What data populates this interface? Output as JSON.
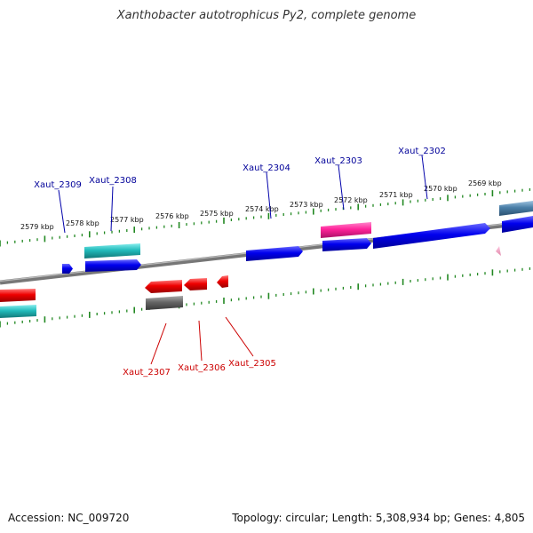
{
  "title": "Xanthobacter autotrophicus Py2, complete genome",
  "footer": {
    "accession": "Accession: NC_009720",
    "summary": "Topology: circular; Length: 5,308,934 bp; Genes: 4,805"
  },
  "colors": {
    "backbone": "#888888",
    "tick": "#228822",
    "forward_gene": "#0000ee",
    "reverse_gene": "#ee0000",
    "cyan_feature": "#22bbbb",
    "magenta_feature": "#ff2299",
    "gray_feature": "#666666",
    "steel_feature": "#4a7fa8",
    "forward_label": "#000099",
    "reverse_label": "#cc0000"
  },
  "scale": {
    "unit": "kbp",
    "labels": [
      "2579 kbp",
      "2578 kbp",
      "2577 kbp",
      "2576 kbp",
      "2575 kbp",
      "2574 kbp",
      "2573 kbp",
      "2572 kbp",
      "2571 kbp",
      "2570 kbp",
      "2569 kbp"
    ]
  },
  "gene_labels": {
    "forward": [
      "Xaut_2309",
      "Xaut_2308",
      "Xaut_2304",
      "Xaut_2303",
      "Xaut_2302"
    ],
    "reverse": [
      "Xaut_2307",
      "Xaut_2306",
      "Xaut_2305"
    ]
  }
}
